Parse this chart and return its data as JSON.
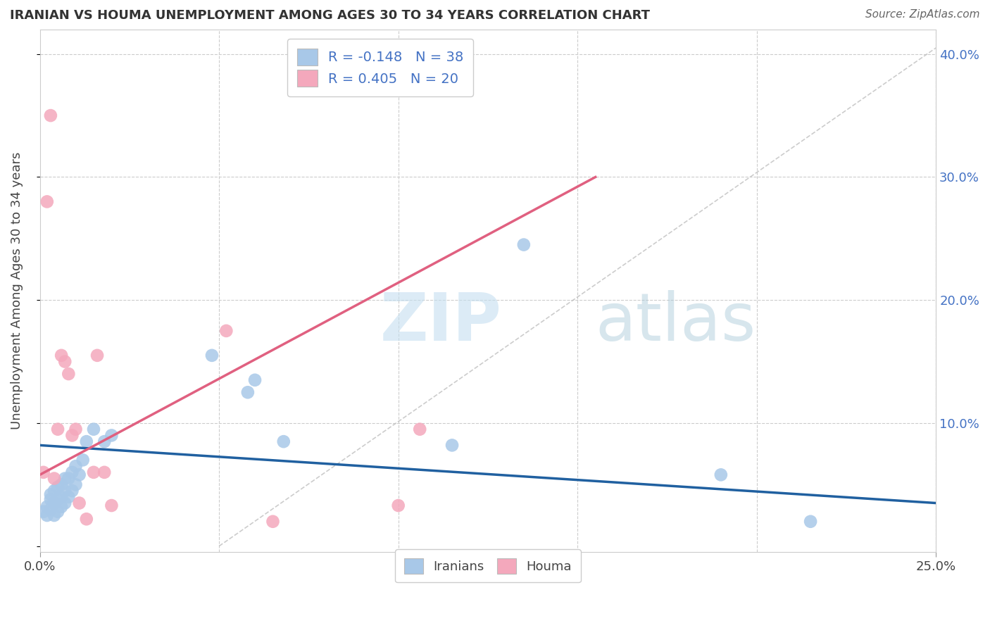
{
  "title": "IRANIAN VS HOUMA UNEMPLOYMENT AMONG AGES 30 TO 34 YEARS CORRELATION CHART",
  "source": "Source: ZipAtlas.com",
  "ylabel": "Unemployment Among Ages 30 to 34 years",
  "xlim": [
    0.0,
    0.25
  ],
  "ylim": [
    -0.005,
    0.42
  ],
  "ytick_vals": [
    0.0,
    0.1,
    0.2,
    0.3,
    0.4
  ],
  "ytick_labels": [
    "",
    "10.0%",
    "20.0%",
    "30.0%",
    "40.0%"
  ],
  "xtick_vals": [
    0.0,
    0.25
  ],
  "xtick_labels": [
    "0.0%",
    "25.0%"
  ],
  "iranian_R": -0.148,
  "iranian_N": 38,
  "houma_R": 0.405,
  "houma_N": 20,
  "color_iranian": "#A8C8E8",
  "color_houma": "#F4A8BC",
  "color_iranian_line": "#2060A0",
  "color_houma_line": "#E06080",
  "watermark_zip": "ZIP",
  "watermark_atlas": "atlas",
  "iranians_x": [
    0.001,
    0.002,
    0.002,
    0.003,
    0.003,
    0.003,
    0.004,
    0.004,
    0.004,
    0.005,
    0.005,
    0.005,
    0.006,
    0.006,
    0.006,
    0.007,
    0.007,
    0.007,
    0.008,
    0.008,
    0.009,
    0.009,
    0.01,
    0.01,
    0.011,
    0.012,
    0.013,
    0.015,
    0.018,
    0.02,
    0.048,
    0.058,
    0.06,
    0.068,
    0.115,
    0.135,
    0.19,
    0.215
  ],
  "iranians_y": [
    0.028,
    0.025,
    0.032,
    0.03,
    0.038,
    0.042,
    0.025,
    0.035,
    0.045,
    0.028,
    0.038,
    0.048,
    0.032,
    0.04,
    0.05,
    0.035,
    0.045,
    0.055,
    0.04,
    0.055,
    0.045,
    0.06,
    0.05,
    0.065,
    0.058,
    0.07,
    0.085,
    0.095,
    0.085,
    0.09,
    0.155,
    0.125,
    0.135,
    0.085,
    0.082,
    0.245,
    0.058,
    0.02
  ],
  "houma_x": [
    0.001,
    0.002,
    0.003,
    0.004,
    0.005,
    0.006,
    0.007,
    0.008,
    0.009,
    0.01,
    0.011,
    0.013,
    0.015,
    0.016,
    0.018,
    0.02,
    0.052,
    0.065,
    0.1,
    0.106
  ],
  "houma_y": [
    0.06,
    0.28,
    0.35,
    0.055,
    0.095,
    0.155,
    0.15,
    0.14,
    0.09,
    0.095,
    0.035,
    0.022,
    0.06,
    0.155,
    0.06,
    0.033,
    0.175,
    0.02,
    0.033,
    0.095
  ],
  "iran_line_x": [
    0.0,
    0.25
  ],
  "iran_line_y": [
    0.082,
    0.035
  ],
  "houma_line_x": [
    0.0,
    0.155
  ],
  "houma_line_y": [
    0.058,
    0.3
  ],
  "diag_line_x": [
    0.05,
    0.25
  ],
  "diag_line_y": [
    0.0,
    0.405
  ]
}
